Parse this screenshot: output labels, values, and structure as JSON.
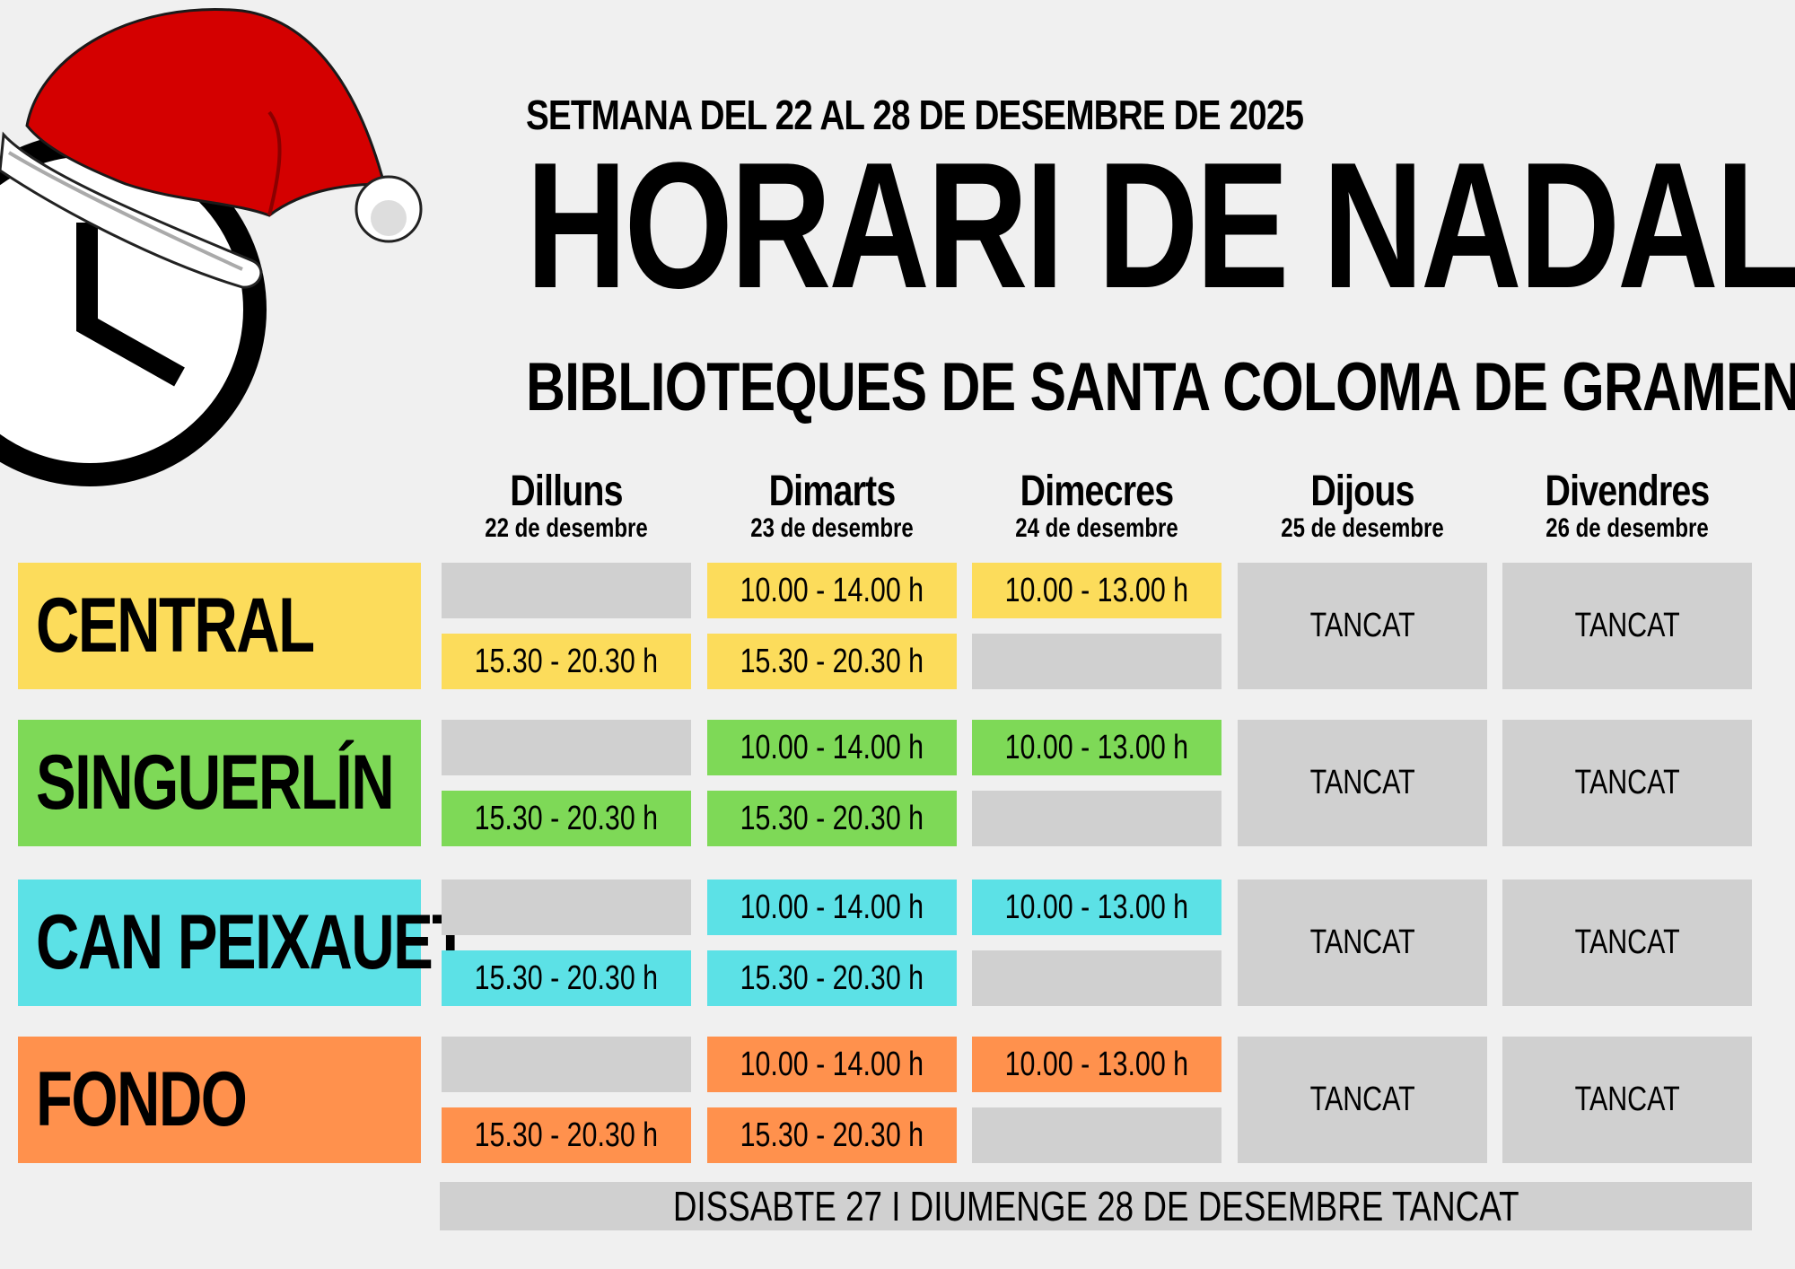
{
  "header": {
    "subtitle": "SETMANA DEL 22 AL 28 DE DESEMBRE DE 2025",
    "title": "HORARI DE NADAL",
    "library_line": "BIBLIOTEQUES DE SANTA COLOMA DE GRAMENET"
  },
  "days": [
    {
      "name": "Dilluns",
      "date": "22 de desembre"
    },
    {
      "name": "Dimarts",
      "date": "23 de desembre"
    },
    {
      "name": "Dimecres",
      "date": "24 de desembre"
    },
    {
      "name": "Dijous",
      "date": "25 de desembre"
    },
    {
      "name": "Divendres",
      "date": "26 de desembre"
    }
  ],
  "libraries": [
    {
      "name": "CENTRAL",
      "color": "#fcdc5b",
      "dilluns": {
        "morning": "",
        "afternoon": "15.30 - 20.30 h"
      },
      "dimarts": {
        "morning": "10.00 - 14.00 h",
        "afternoon": "15.30 - 20.30 h"
      },
      "dimecres": {
        "morning": "10.00 - 13.00 h",
        "afternoon": ""
      },
      "dijous": "TANCAT",
      "divendres": "TANCAT"
    },
    {
      "name": "SINGUERLÍN",
      "color": "#7ed957",
      "dilluns": {
        "morning": "",
        "afternoon": "15.30 - 20.30 h"
      },
      "dimarts": {
        "morning": "10.00 - 14.00 h",
        "afternoon": "15.30 - 20.30 h"
      },
      "dimecres": {
        "morning": "10.00 - 13.00 h",
        "afternoon": ""
      },
      "dijous": "TANCAT",
      "divendres": "TANCAT"
    },
    {
      "name": "CAN PEIXAUET",
      "color": "#5ce1e6",
      "dilluns": {
        "morning": "",
        "afternoon": "15.30 - 20.30 h"
      },
      "dimarts": {
        "morning": "10.00 - 14.00 h",
        "afternoon": "15.30 - 20.30 h"
      },
      "dimecres": {
        "morning": "10.00 - 13.00 h",
        "afternoon": ""
      },
      "dijous": "TANCAT",
      "divendres": "TANCAT"
    },
    {
      "name": "FONDO",
      "color": "#ff914d",
      "dilluns": {
        "morning": "",
        "afternoon": "15.30 - 20.30 h"
      },
      "dimarts": {
        "morning": "10.00 - 14.00 h",
        "afternoon": "15.30 - 20.30 h"
      },
      "dimecres": {
        "morning": "10.00 - 13.00 h",
        "afternoon": ""
      },
      "dijous": "TANCAT",
      "divendres": "TANCAT"
    }
  ],
  "footer": "DISSABTE 27 I DIUMENGE 28 DE DESEMBRE TANCAT",
  "colors": {
    "empty_cell": "#d0d0d0",
    "background": "#f0f0f0"
  },
  "icons": [
    "clock-icon",
    "santa-hat-icon"
  ]
}
